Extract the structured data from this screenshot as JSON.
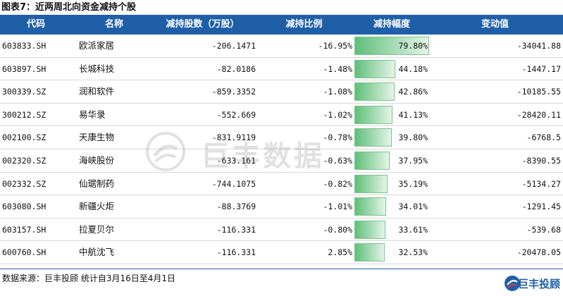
{
  "caption": "图表7：近两周北向资金减持个股",
  "headers": {
    "code": "代码",
    "name": "名称",
    "shares": "减持股数（万股）",
    "ratio": "减持比例",
    "amplitude": "减持幅度",
    "change": "变动值"
  },
  "rows": [
    {
      "code": "603833.SH",
      "name": "欧派家居",
      "shares": "-206.1471",
      "ratio": "-16.95%",
      "amplitude": "79.80%",
      "amplitude_value": 79.8,
      "change": "-34041.88"
    },
    {
      "code": "603897.SH",
      "name": "长城科技",
      "shares": "-82.0186",
      "ratio": "-1.48%",
      "amplitude": "44.18%",
      "amplitude_value": 44.18,
      "change": "-1447.17"
    },
    {
      "code": "300339.SZ",
      "name": "润和软件",
      "shares": "-859.3352",
      "ratio": "-1.08%",
      "amplitude": "42.86%",
      "amplitude_value": 42.86,
      "change": "-10185.55"
    },
    {
      "code": "300212.SZ",
      "name": "易华录",
      "shares": "-552.669",
      "ratio": "-1.02%",
      "amplitude": "41.13%",
      "amplitude_value": 41.13,
      "change": "-28420.11"
    },
    {
      "code": "002100.SZ",
      "name": "天康生物",
      "shares": "-831.9119",
      "ratio": "-0.78%",
      "amplitude": "39.80%",
      "amplitude_value": 39.8,
      "change": "-6768.5"
    },
    {
      "code": "002320.SZ",
      "name": "海峡股份",
      "shares": "-633.161",
      "ratio": "-0.63%",
      "amplitude": "37.95%",
      "amplitude_value": 37.95,
      "change": "-8390.55"
    },
    {
      "code": "002332.SZ",
      "name": "仙琚制药",
      "shares": "-744.1075",
      "ratio": "-0.82%",
      "amplitude": "35.19%",
      "amplitude_value": 35.19,
      "change": "-5134.27"
    },
    {
      "code": "603080.SH",
      "name": "新疆火炬",
      "shares": "-88.3769",
      "ratio": "-1.01%",
      "amplitude": "34.01%",
      "amplitude_value": 34.01,
      "change": "-1291.45"
    },
    {
      "code": "603157.SH",
      "name": "拉夏贝尔",
      "shares": "-116.331",
      "ratio": "-0.80%",
      "amplitude": "33.61%",
      "amplitude_value": 33.61,
      "change": "-539.68"
    },
    {
      "code": "600760.SH",
      "name": "中航沈飞",
      "shares": "-116.331",
      "ratio": "2.85%",
      "amplitude": "32.53%",
      "amplitude_value": 32.53,
      "change": "-20478.05"
    }
  ],
  "footer": {
    "source": "数据来源：巨丰投顾   统计自3月16日至4月1日",
    "brand": "巨丰投顾"
  },
  "watermark": {
    "text": "巨丰数据",
    "icon": "jufeng-logo-icon"
  },
  "colors": {
    "header_bg": "#1f5fa8",
    "bar_start": "#5fbf79",
    "bar_end": "#e4f4e8",
    "brand": "#1f5fa8"
  }
}
